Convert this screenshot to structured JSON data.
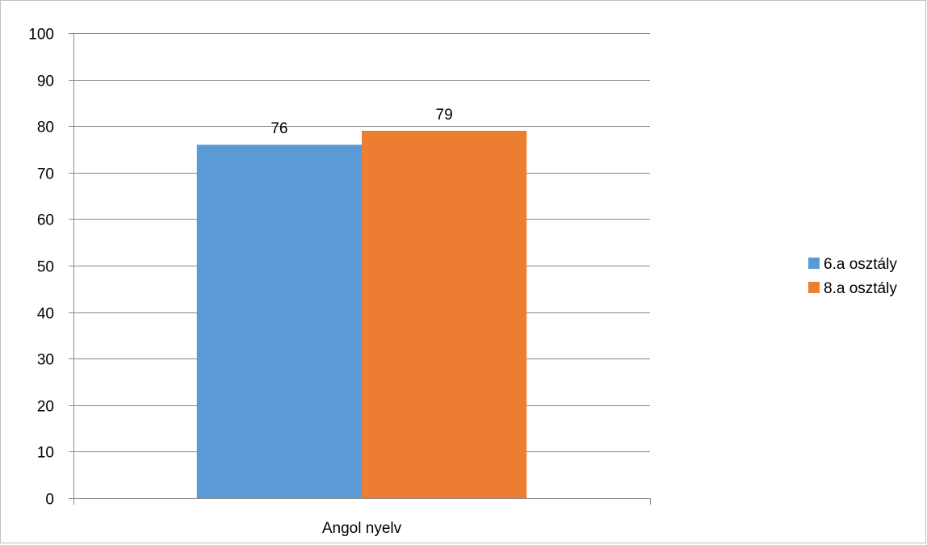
{
  "chart_data": {
    "type": "bar",
    "categories": [
      "Angol nyelv"
    ],
    "series": [
      {
        "name": "6.a osztály",
        "values": [
          76
        ],
        "color": "#5b9bd5"
      },
      {
        "name": "8.a osztály",
        "values": [
          79
        ],
        "color": "#ed7d31"
      }
    ],
    "ylim": [
      0,
      100
    ],
    "yticks": [
      0,
      10,
      20,
      30,
      40,
      50,
      60,
      70,
      80,
      90,
      100
    ],
    "grid": true,
    "legend_position": "right",
    "data_labels": true
  }
}
